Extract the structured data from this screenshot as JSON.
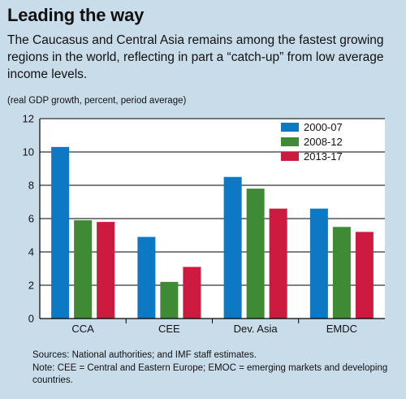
{
  "title": "Leading the way",
  "subtitle": "The Caucasus and Central Asia remains among the fastest growing regions in the world, reflecting in part a “catch-up” from low average income levels.",
  "units": "(real GDP growth, percent, period average)",
  "sources": "Sources: National authorities; and IMF staff estimates.",
  "note": "Note: CEE = Central and Eastern Europe; EMOC = emerging markets and developing countries.",
  "chart_data": {
    "type": "bar",
    "categories": [
      "CCA",
      "CEE",
      "Dev. Asia",
      "EMDC"
    ],
    "series": [
      {
        "name": "2000-07",
        "color": "#0d78c4",
        "values": [
          10.3,
          4.9,
          8.5,
          6.6
        ]
      },
      {
        "name": "2008-12",
        "color": "#3e8a35",
        "values": [
          5.9,
          2.2,
          7.8,
          5.5
        ]
      },
      {
        "name": "2013-17",
        "color": "#cc1b3f",
        "values": [
          5.8,
          3.1,
          6.6,
          5.2
        ]
      }
    ],
    "ylim": [
      0,
      12
    ],
    "yticks": [
      "0",
      "2",
      "4",
      "6",
      "8",
      "10",
      "12"
    ],
    "grid": true,
    "legend_placement": "top-right"
  }
}
